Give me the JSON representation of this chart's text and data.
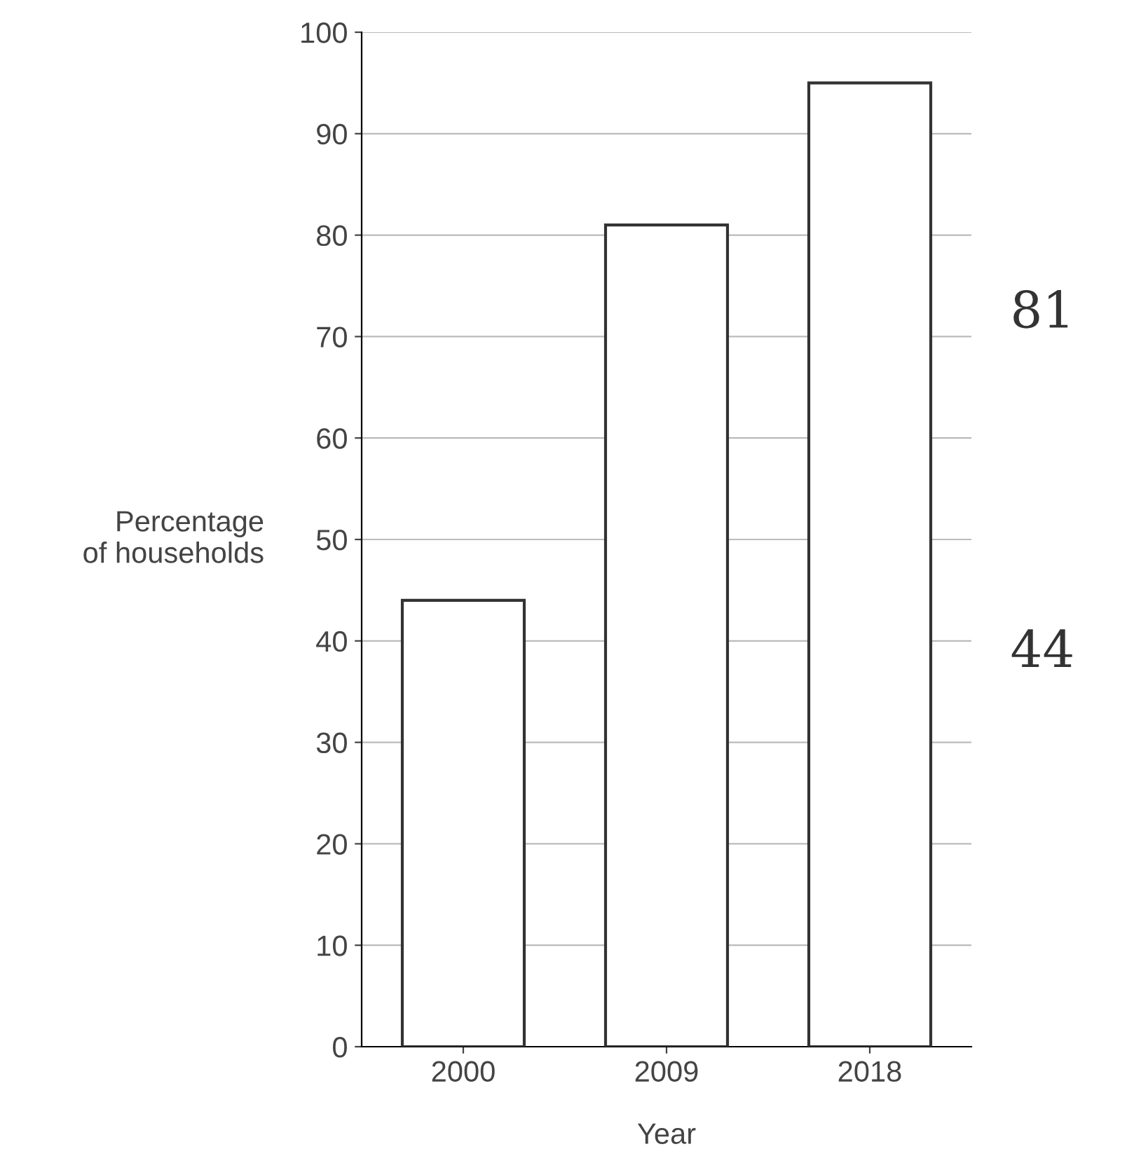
{
  "chart_data": {
    "type": "bar",
    "xlabel": "Year",
    "ylabel": "Percentage\nof households",
    "categories": [
      "2000",
      "2009",
      "2018"
    ],
    "values": [
      44,
      81,
      95
    ],
    "color": "#ffffff",
    "ylim": [
      0,
      100
    ],
    "yticks": [
      0,
      10,
      20,
      30,
      40,
      50,
      60,
      70,
      80,
      90,
      100
    ],
    "grid": "y",
    "annotations": [
      "81",
      "44"
    ]
  }
}
